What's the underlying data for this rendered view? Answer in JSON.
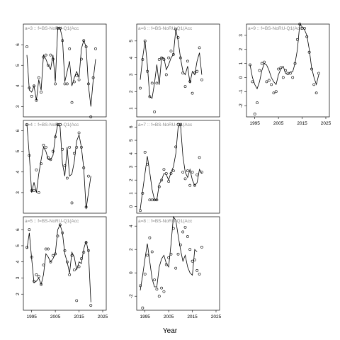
{
  "chart_data": {
    "type": "line",
    "xlabel": "Year",
    "x_ticks": [
      1995,
      2005,
      2015,
      2025
    ],
    "panels": [
      {
        "title": "a=3 :: f=BS-NoRU-Q1(Acc",
        "ylim": [
          2.5,
          7.0
        ],
        "y_ticks": [
          3,
          4,
          5,
          6
        ],
        "x": [
          1993,
          1994,
          1995,
          1996,
          1997,
          1998,
          1999,
          2000,
          2001,
          2002,
          2003,
          2004,
          2005,
          2006,
          2007,
          2008,
          2009,
          2010,
          2011,
          2012,
          2013,
          2014,
          2015,
          2016,
          2017,
          2018,
          2019,
          2020,
          2021,
          2022,
          2023
        ],
        "line": [
          5.5,
          3.8,
          3.7,
          4.0,
          3.3,
          4.3,
          3.8,
          5.5,
          5.3,
          5.0,
          4.8,
          5.5,
          4.2,
          6.8,
          6.8,
          6.3,
          4.2,
          4.7,
          5.2,
          4.0,
          4.4,
          4.7,
          4.4,
          5.8,
          6.2,
          5.9,
          4.0,
          3.0,
          4.3,
          5.3,
          null
        ],
        "points": [
          5.9,
          3.9,
          3.5,
          4.0,
          3.3,
          4.4,
          3.7,
          5.4,
          5.5,
          5.0,
          5.5,
          5.3,
          4.1,
          6.8,
          6.8,
          6.2,
          4.1,
          4.1,
          5.8,
          3.2,
          4.2,
          4.5,
          4.3,
          5.3,
          6.2,
          5.9,
          4.1,
          2.5,
          4.4,
          5.8,
          null
        ]
      },
      {
        "title": "a=6 :: f=BS-NoRU-Q1(Acc",
        "ylim": [
          0.5,
          6.0
        ],
        "y_ticks": [
          1,
          2,
          3,
          4,
          5
        ],
        "x": [
          1993,
          1994,
          1995,
          1996,
          1997,
          1998,
          1999,
          2000,
          2001,
          2002,
          2003,
          2004,
          2005,
          2006,
          2007,
          2008,
          2009,
          2010,
          2011,
          2012,
          2013,
          2014,
          2015,
          2016,
          2017,
          2018,
          2019,
          2020,
          2021,
          2022,
          2023
        ],
        "line": [
          2.7,
          4.0,
          5.0,
          3.6,
          1.7,
          1.6,
          2.5,
          3.6,
          2.4,
          4.0,
          4.0,
          3.3,
          3.6,
          4.0,
          4.2,
          5.7,
          5.0,
          4.0,
          3.2,
          3.0,
          3.5,
          2.5,
          3.2,
          3.0,
          3.8,
          4.3,
          3.0,
          null,
          null,
          null,
          null
        ],
        "points": [
          2.2,
          3.9,
          5.0,
          3.2,
          1.7,
          2.5,
          0.8,
          2.5,
          3.9,
          4.0,
          3.9,
          3.0,
          4.0,
          4.4,
          4.2,
          5.7,
          5.2,
          4.0,
          3.1,
          2.3,
          3.8,
          2.6,
          1.9,
          3.1,
          3.2,
          4.6,
          2.7,
          null,
          null,
          null,
          null
        ]
      },
      {
        "title": "a=9 :: f=BS-NoRU-Q1(Acc",
        "ylim": [
          -2.8,
          3.8
        ],
        "y_ticks": [
          -2,
          -1,
          0,
          1,
          2,
          3
        ],
        "x": [
          1993,
          1994,
          1995,
          1996,
          1997,
          1998,
          1999,
          2000,
          2001,
          2002,
          2003,
          2004,
          2005,
          2006,
          2007,
          2008,
          2009,
          2010,
          2011,
          2012,
          2013,
          2014,
          2015,
          2016,
          2017,
          2018,
          2019,
          2020,
          2021,
          2022,
          2023
        ],
        "line": [
          0.9,
          0.0,
          -0.5,
          -0.8,
          -0.3,
          0.5,
          1.0,
          0.9,
          0.5,
          0.0,
          -0.3,
          -0.5,
          0.2,
          0.6,
          0.8,
          0.3,
          0.2,
          0.4,
          0.4,
          1.0,
          2.0,
          3.8,
          3.6,
          3.4,
          3.0,
          2.0,
          0.7,
          0.0,
          -0.5,
          0.2,
          null
        ],
        "points": [
          0.9,
          -0.3,
          -2.6,
          -1.8,
          0.5,
          1.0,
          1.1,
          -0.3,
          -0.2,
          -0.5,
          -1.1,
          -1.0,
          0.6,
          0.7,
          0.0,
          0.5,
          0.3,
          0.3,
          0.0,
          1.0,
          2.7,
          3.8,
          3.5,
          3.5,
          2.9,
          1.8,
          0.6,
          -0.5,
          -1.1,
          0.3,
          null
        ]
      },
      {
        "title": "a=4 :: f=BS-NoRU-Q1(Acc",
        "ylim": [
          2.0,
          6.5
        ],
        "y_ticks": [
          3,
          4,
          5,
          6
        ],
        "x": [
          1993,
          1994,
          1995,
          1996,
          1997,
          1998,
          1999,
          2000,
          2001,
          2002,
          2003,
          2004,
          2005,
          2006,
          2007,
          2008,
          2009,
          2010,
          2011,
          2012,
          2013,
          2014,
          2015,
          2016,
          2017,
          2018,
          2019,
          2020,
          2021,
          2022,
          2023
        ],
        "line": [
          6.3,
          4.8,
          3.0,
          3.5,
          3.0,
          3.9,
          4.6,
          5.2,
          5.0,
          4.6,
          4.6,
          4.8,
          5.7,
          6.3,
          6.2,
          4.4,
          3.8,
          5.2,
          3.8,
          3.9,
          4.5,
          5.5,
          5.8,
          5.2,
          4.2,
          2.2,
          3.0,
          3.8,
          null,
          null,
          null
        ],
        "points": [
          6.3,
          4.8,
          3.1,
          3.1,
          4.1,
          3.0,
          4.4,
          5.3,
          5.2,
          4.7,
          4.6,
          5.0,
          5.7,
          6.3,
          6.3,
          5.1,
          4.3,
          3.7,
          5.2,
          2.5,
          4.9,
          5.2,
          5.9,
          5.2,
          4.2,
          2.3,
          3.8,
          null,
          null,
          null,
          null
        ]
      },
      {
        "title": "a=7 :: f=BS-NoRU-Q1(Acc",
        "ylim": [
          -0.5,
          6.5
        ],
        "y_ticks": [
          0,
          1,
          2,
          3,
          4,
          5,
          6
        ],
        "x": [
          1993,
          1994,
          1995,
          1996,
          1997,
          1998,
          1999,
          2000,
          2001,
          2002,
          2003,
          2004,
          2005,
          2006,
          2007,
          2008,
          2009,
          2010,
          2011,
          2012,
          2013,
          2014,
          2015,
          2016,
          2017,
          2018,
          2019,
          2020,
          2021,
          2022,
          2023
        ],
        "line": [
          -0.2,
          1.2,
          2.5,
          3.8,
          2.6,
          1.3,
          0.5,
          0.5,
          1.7,
          2.0,
          2.5,
          2.4,
          2.0,
          2.6,
          3.0,
          4.0,
          6.0,
          6.2,
          3.8,
          2.6,
          2.2,
          2.8,
          2.0,
          1.6,
          1.8,
          2.8,
          2.5,
          null,
          null,
          null,
          null
        ],
        "points": [
          -0.3,
          1.0,
          4.1,
          3.2,
          0.5,
          0.5,
          0.5,
          0.5,
          1.5,
          2.0,
          2.8,
          2.5,
          1.9,
          2.5,
          2.7,
          4.5,
          6.2,
          6.2,
          2.6,
          2.1,
          2.7,
          1.6,
          2.6,
          1.6,
          2.4,
          3.7,
          2.6,
          null,
          null,
          null,
          null
        ]
      },
      {
        "title": "a=5 :: f=BS-NoRU-Q1(Acc",
        "ylim": [
          1.0,
          6.8
        ],
        "y_ticks": [
          2,
          3,
          4,
          5,
          6
        ],
        "x": [
          1993,
          1994,
          1995,
          1996,
          1997,
          1998,
          1999,
          2000,
          2001,
          2002,
          2003,
          2004,
          2005,
          2006,
          2007,
          2008,
          2009,
          2010,
          2011,
          2012,
          2013,
          2014,
          2015,
          2016,
          2017,
          2018,
          2019,
          2020,
          2021,
          2022,
          2023
        ],
        "line": [
          4.8,
          5.8,
          4.2,
          2.7,
          2.8,
          3.0,
          2.6,
          3.2,
          4.5,
          4.3,
          4.0,
          4.2,
          4.5,
          6.0,
          6.3,
          5.8,
          4.5,
          4.0,
          3.3,
          4.6,
          4.3,
          3.5,
          4.0,
          3.9,
          4.8,
          5.3,
          4.6,
          1.5,
          null,
          null,
          null
        ],
        "points": [
          4.9,
          6.0,
          4.3,
          2.8,
          3.2,
          3.1,
          2.6,
          3.8,
          4.8,
          4.8,
          4.0,
          4.4,
          4.5,
          5.6,
          6.3,
          5.8,
          4.7,
          4.0,
          3.2,
          4.4,
          3.5,
          1.6,
          3.7,
          4.2,
          4.6,
          5.2,
          4.7,
          1.3,
          null,
          null,
          null
        ]
      },
      {
        "title": "a=8 :: f=BS-NoRU-Q1(Acc",
        "ylim": [
          -3.2,
          4.8
        ],
        "y_ticks": [
          -2,
          0,
          2,
          4
        ],
        "x": [
          1993,
          1994,
          1995,
          1996,
          1997,
          1998,
          1999,
          2000,
          2001,
          2002,
          2003,
          2004,
          2005,
          2006,
          2007,
          2008,
          2009,
          2010,
          2011,
          2012,
          2013,
          2014,
          2015,
          2016,
          2017,
          2018,
          2019,
          2020,
          2021,
          2022,
          2023
        ],
        "line": [
          -1.5,
          -0.2,
          1.2,
          2.5,
          1.0,
          -0.5,
          -1.2,
          -1.2,
          0.5,
          1.2,
          1.5,
          0.8,
          0.5,
          2.5,
          4.8,
          4.5,
          3.2,
          2.0,
          1.0,
          1.5,
          0.5,
          0.0,
          -0.2,
          2.0,
          1.8,
          null,
          null,
          null,
          null,
          null,
          null
        ],
        "points": [
          -1.1,
          -3.0,
          -0.1,
          1.5,
          3.0,
          1.8,
          -0.6,
          -1.4,
          -2.0,
          -1.3,
          -1.6,
          0.7,
          1.3,
          1.6,
          3.8,
          0.4,
          1.6,
          2.4,
          3.5,
          3.9,
          3.1,
          2.0,
          1.0,
          1.1,
          0.2,
          -0.1,
          2.2,
          null,
          null,
          null,
          null
        ]
      }
    ]
  }
}
